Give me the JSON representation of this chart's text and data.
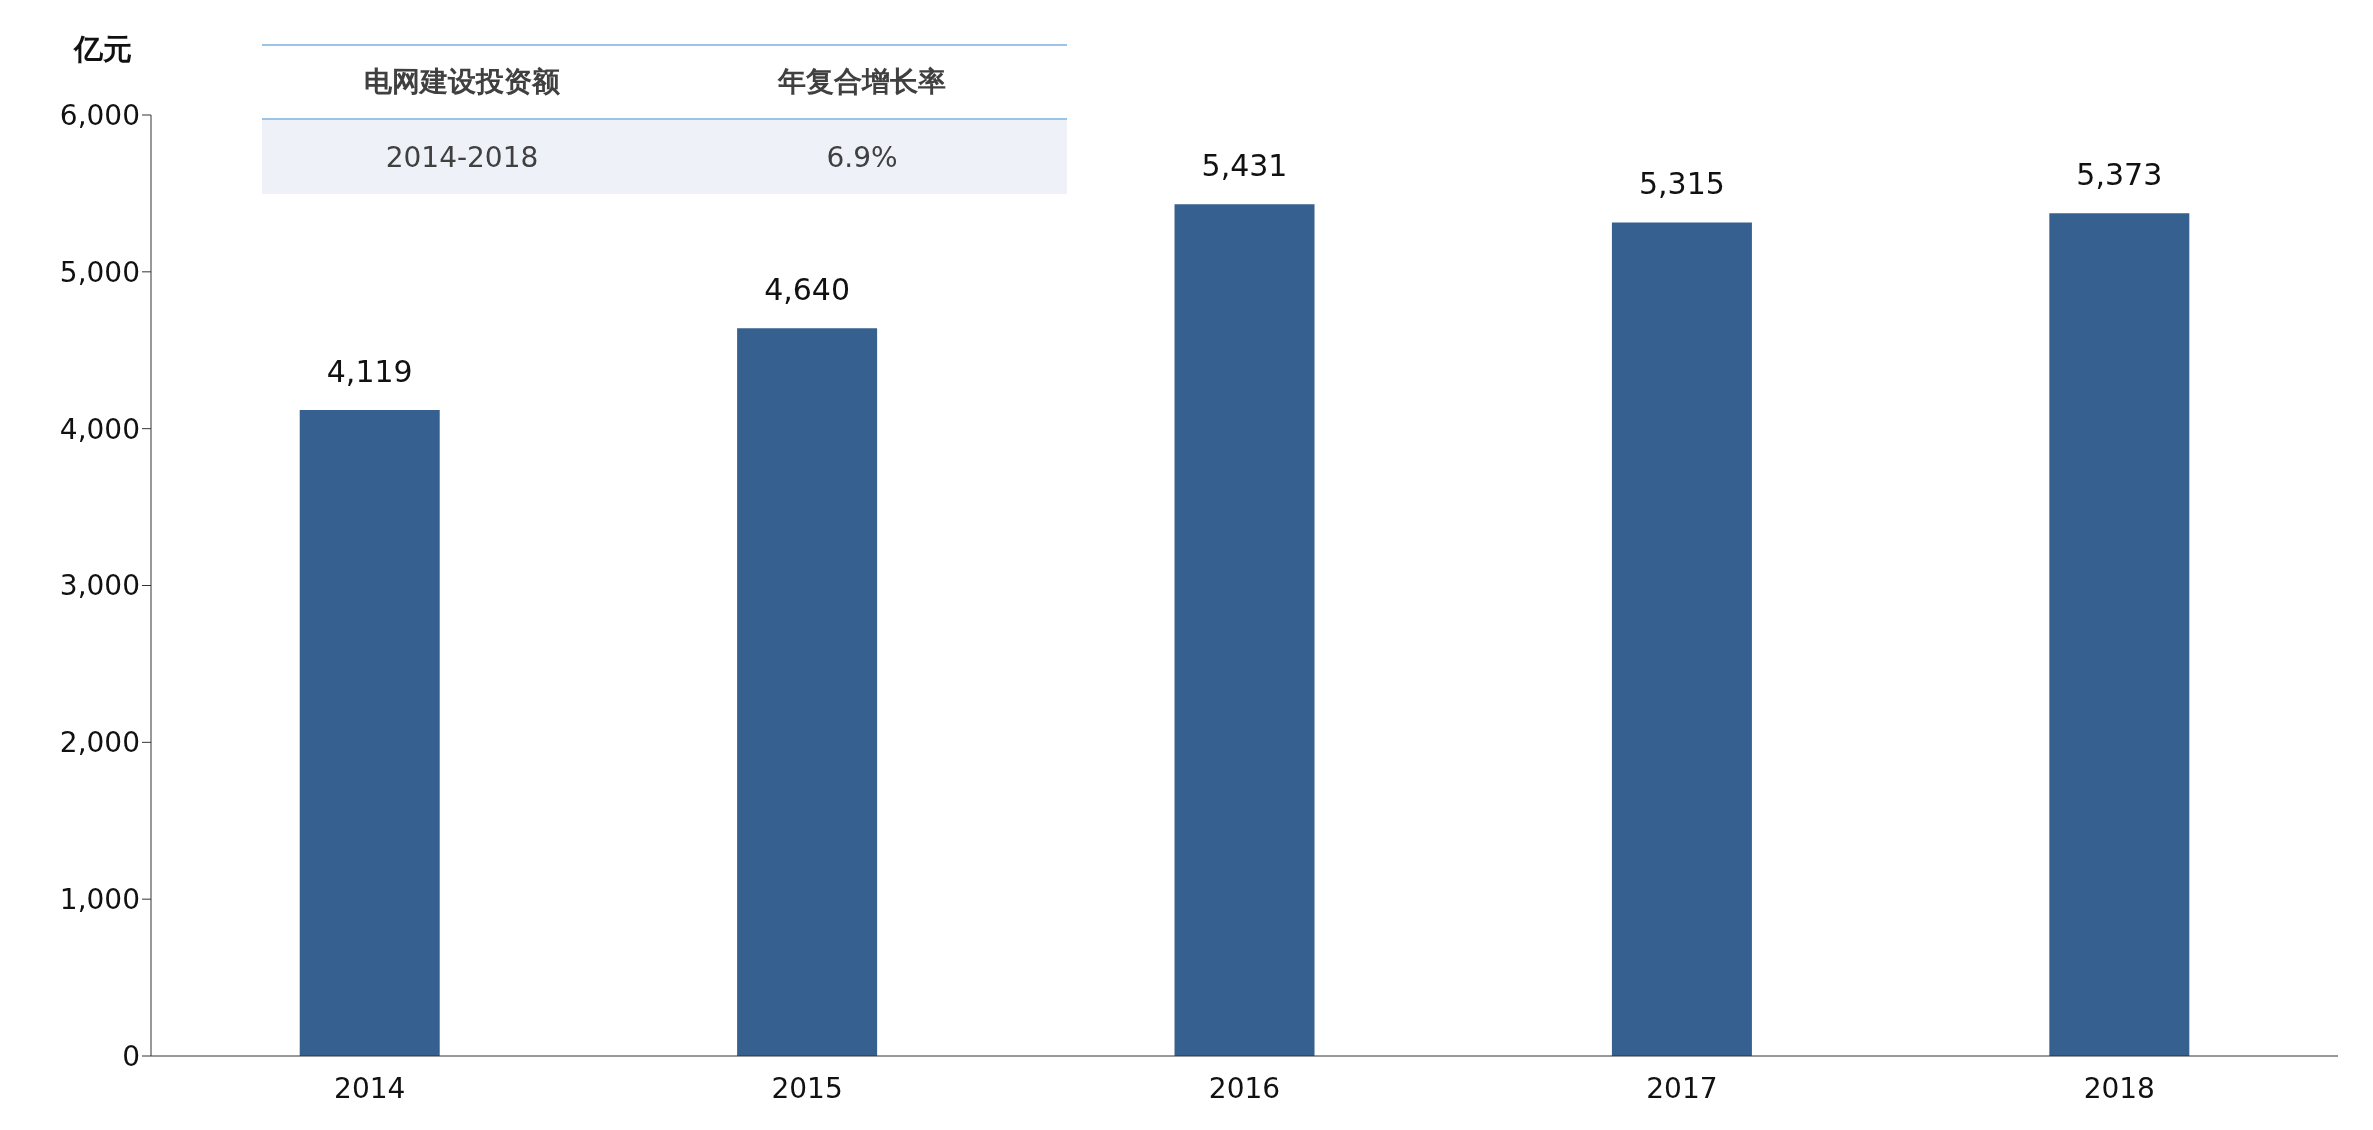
{
  "chart_data": {
    "type": "bar",
    "ylabel": "亿元",
    "categories": [
      "2014",
      "2015",
      "2016",
      "2017",
      "2018"
    ],
    "values": [
      4119,
      4640,
      5431,
      5315,
      5373
    ],
    "color": "#35608f",
    "ylim": [
      0,
      6000
    ],
    "yticks": [
      {
        "value": 0,
        "label": "0"
      },
      {
        "value": 1000,
        "label": "1,000"
      },
      {
        "value": 2000,
        "label": "2,000"
      },
      {
        "value": 3000,
        "label": "3,000"
      },
      {
        "value": 4000,
        "label": "4,000"
      },
      {
        "value": 5000,
        "label": "5,000"
      },
      {
        "value": 6000,
        "label": "6,000"
      }
    ],
    "value_labels": [
      "4,119",
      "4,640",
      "5,431",
      "5,315",
      "5,373"
    ],
    "grid": false,
    "annotations": [
      "电网建设投资额",
      "年复合增长率",
      "2014-2018",
      "6.9%"
    ]
  }
}
